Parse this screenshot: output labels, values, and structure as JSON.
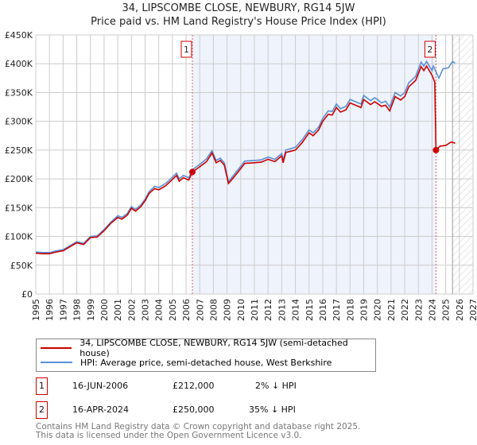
{
  "header": {
    "title": "34, LIPSCOMBE CLOSE, NEWBURY, RG14 5JW",
    "subtitle": "Price paid vs. HM Land Registry's House Price Index (HPI)"
  },
  "chart_data": {
    "type": "line",
    "title": "34, LIPSCOMBE CLOSE, NEWBURY, RG14 5JW",
    "subtitle": "Price paid vs. HM Land Registry's House Price Index (HPI)",
    "xlim": [
      1995,
      2027
    ],
    "ylim": [
      0,
      450000
    ],
    "x_ticks": [
      "1995",
      "1996",
      "1997",
      "1998",
      "1999",
      "2000",
      "2001",
      "2002",
      "2003",
      "2004",
      "2005",
      "2006",
      "2007",
      "2008",
      "2009",
      "2010",
      "2011",
      "2012",
      "2013",
      "2014",
      "2015",
      "2016",
      "2017",
      "2018",
      "2019",
      "2020",
      "2021",
      "2022",
      "2023",
      "2024",
      "2025",
      "2026",
      "2027"
    ],
    "y_ticks": [
      {
        "v": 0,
        "l": "£0"
      },
      {
        "v": 50000,
        "l": "£50K"
      },
      {
        "v": 100000,
        "l": "£100K"
      },
      {
        "v": 150000,
        "l": "£150K"
      },
      {
        "v": 200000,
        "l": "£200K"
      },
      {
        "v": 250000,
        "l": "£250K"
      },
      {
        "v": 300000,
        "l": "£300K"
      },
      {
        "v": 350000,
        "l": "£350K"
      },
      {
        "v": 400000,
        "l": "£400K"
      },
      {
        "v": 450000,
        "l": "£450K"
      }
    ],
    "grid": true,
    "shaded_range": [
      2006.46,
      2024.29
    ],
    "forecast_hatch_from": 2025.5,
    "series": [
      {
        "name": "HPI: Average price, semi-detached house, West Berkshire",
        "color": "#5b8fd6",
        "points": [
          [
            1995,
            73
          ],
          [
            1995.5,
            72
          ],
          [
            1996,
            72
          ],
          [
            1996.5,
            75
          ],
          [
            1997,
            77
          ],
          [
            1997.5,
            84
          ],
          [
            1998,
            91
          ],
          [
            1998.5,
            88
          ],
          [
            1999,
            100
          ],
          [
            1999.5,
            101
          ],
          [
            2000,
            112
          ],
          [
            2000.5,
            125
          ],
          [
            2001,
            136
          ],
          [
            2001.3,
            133
          ],
          [
            2001.7,
            140
          ],
          [
            2002,
            152
          ],
          [
            2002.3,
            147
          ],
          [
            2002.7,
            155
          ],
          [
            2003,
            165
          ],
          [
            2003.3,
            178
          ],
          [
            2003.7,
            187
          ],
          [
            2004,
            185
          ],
          [
            2004.5,
            192
          ],
          [
            2005,
            203
          ],
          [
            2005.3,
            210
          ],
          [
            2005.5,
            200
          ],
          [
            2005.8,
            206
          ],
          [
            2006.2,
            202
          ],
          [
            2006.46,
            216
          ],
          [
            2007,
            225
          ],
          [
            2007.5,
            235
          ],
          [
            2007.9,
            249
          ],
          [
            2008.2,
            232
          ],
          [
            2008.5,
            236
          ],
          [
            2008.8,
            228
          ],
          [
            2009.1,
            195
          ],
          [
            2009.5,
            207
          ],
          [
            2010,
            222
          ],
          [
            2010.3,
            231
          ],
          [
            2011,
            232
          ],
          [
            2011.5,
            233
          ],
          [
            2012,
            238
          ],
          [
            2012.5,
            234
          ],
          [
            2013,
            244
          ],
          [
            2013.1,
            232
          ],
          [
            2013.3,
            250
          ],
          [
            2014,
            255
          ],
          [
            2014.5,
            268
          ],
          [
            2015,
            285
          ],
          [
            2015.3,
            280
          ],
          [
            2015.7,
            290
          ],
          [
            2016,
            305
          ],
          [
            2016.4,
            318
          ],
          [
            2016.7,
            317
          ],
          [
            2017,
            330
          ],
          [
            2017.3,
            322
          ],
          [
            2017.7,
            326
          ],
          [
            2018,
            338
          ],
          [
            2018.5,
            333
          ],
          [
            2018.8,
            330
          ],
          [
            2019,
            345
          ],
          [
            2019.5,
            336
          ],
          [
            2019.8,
            341
          ],
          [
            2020,
            338
          ],
          [
            2020.3,
            332
          ],
          [
            2020.6,
            335
          ],
          [
            2020.9,
            325
          ],
          [
            2021.3,
            350
          ],
          [
            2021.7,
            344
          ],
          [
            2022,
            350
          ],
          [
            2022.3,
            367
          ],
          [
            2022.8,
            378
          ],
          [
            2023.2,
            403
          ],
          [
            2023.4,
            396
          ],
          [
            2023.6,
            404
          ],
          [
            2024,
            388
          ],
          [
            2024.1,
            396
          ],
          [
            2024.5,
            375
          ],
          [
            2024.8,
            391
          ],
          [
            2025.2,
            393
          ],
          [
            2025.5,
            404
          ],
          [
            2025.7,
            401
          ]
        ]
      },
      {
        "name": "34, LIPSCOMBE CLOSE, NEWBURY, RG14 5JW (semi-detached house)",
        "color": "#cc0000",
        "points": [
          [
            1995,
            71
          ],
          [
            1995.5,
            70
          ],
          [
            1996,
            70
          ],
          [
            1996.5,
            73
          ],
          [
            1997,
            75
          ],
          [
            1997.5,
            82
          ],
          [
            1998,
            89
          ],
          [
            1998.5,
            86
          ],
          [
            1999,
            98
          ],
          [
            1999.5,
            99
          ],
          [
            2000,
            110
          ],
          [
            2000.5,
            123
          ],
          [
            2001,
            133
          ],
          [
            2001.3,
            130
          ],
          [
            2001.7,
            137
          ],
          [
            2002,
            149
          ],
          [
            2002.3,
            144
          ],
          [
            2002.7,
            152
          ],
          [
            2003,
            162
          ],
          [
            2003.3,
            175
          ],
          [
            2003.7,
            183
          ],
          [
            2004,
            181
          ],
          [
            2004.5,
            188
          ],
          [
            2005,
            199
          ],
          [
            2005.3,
            206
          ],
          [
            2005.5,
            196
          ],
          [
            2005.8,
            202
          ],
          [
            2006.2,
            198
          ],
          [
            2006.46,
            212
          ],
          [
            2007,
            221
          ],
          [
            2007.5,
            230
          ],
          [
            2007.9,
            245
          ],
          [
            2008.2,
            228
          ],
          [
            2008.5,
            232
          ],
          [
            2008.8,
            224
          ],
          [
            2009.1,
            192
          ],
          [
            2009.5,
            203
          ],
          [
            2010,
            218
          ],
          [
            2010.3,
            227
          ],
          [
            2011,
            228
          ],
          [
            2011.5,
            229
          ],
          [
            2012,
            234
          ],
          [
            2012.5,
            230
          ],
          [
            2013,
            240
          ],
          [
            2013.1,
            228
          ],
          [
            2013.3,
            246
          ],
          [
            2014,
            250
          ],
          [
            2014.5,
            263
          ],
          [
            2015,
            280
          ],
          [
            2015.3,
            275
          ],
          [
            2015.7,
            285
          ],
          [
            2016,
            300
          ],
          [
            2016.4,
            312
          ],
          [
            2016.7,
            311
          ],
          [
            2017,
            324
          ],
          [
            2017.3,
            316
          ],
          [
            2017.7,
            320
          ],
          [
            2018,
            332
          ],
          [
            2018.5,
            327
          ],
          [
            2018.8,
            324
          ],
          [
            2019,
            338
          ],
          [
            2019.5,
            329
          ],
          [
            2019.8,
            334
          ],
          [
            2020,
            331
          ],
          [
            2020.3,
            326
          ],
          [
            2020.6,
            328
          ],
          [
            2020.9,
            318
          ],
          [
            2021.3,
            343
          ],
          [
            2021.7,
            337
          ],
          [
            2022,
            343
          ],
          [
            2022.3,
            360
          ],
          [
            2022.8,
            371
          ],
          [
            2023.2,
            395
          ],
          [
            2023.4,
            388
          ],
          [
            2023.6,
            396
          ],
          [
            2024,
            380
          ],
          [
            2024.2,
            368
          ],
          [
            2024.29,
            250
          ],
          [
            2024.6,
            257
          ],
          [
            2025,
            258
          ],
          [
            2025.4,
            264
          ],
          [
            2025.7,
            262
          ]
        ]
      }
    ],
    "sales": [
      {
        "label": "1",
        "year": 2006.46,
        "value": 212
      },
      {
        "label": "2",
        "year": 2024.29,
        "value": 250
      }
    ]
  },
  "legend": {
    "items": [
      "34, LIPSCOMBE CLOSE, NEWBURY, RG14 5JW (semi-detached house)",
      "HPI: Average price, semi-detached house, West Berkshire"
    ]
  },
  "table": [
    {
      "num": "1",
      "date": "16-JUN-2006",
      "price": "£212,000",
      "hpi": "2% ↓ HPI"
    },
    {
      "num": "2",
      "date": "16-APR-2024",
      "price": "£250,000",
      "hpi": "35% ↓ HPI"
    }
  ],
  "footer": {
    "line1": "Contains HM Land Registry data © Crown copyright and database right 2025.",
    "line2": "This data is licensed under the Open Government Licence v3.0."
  }
}
